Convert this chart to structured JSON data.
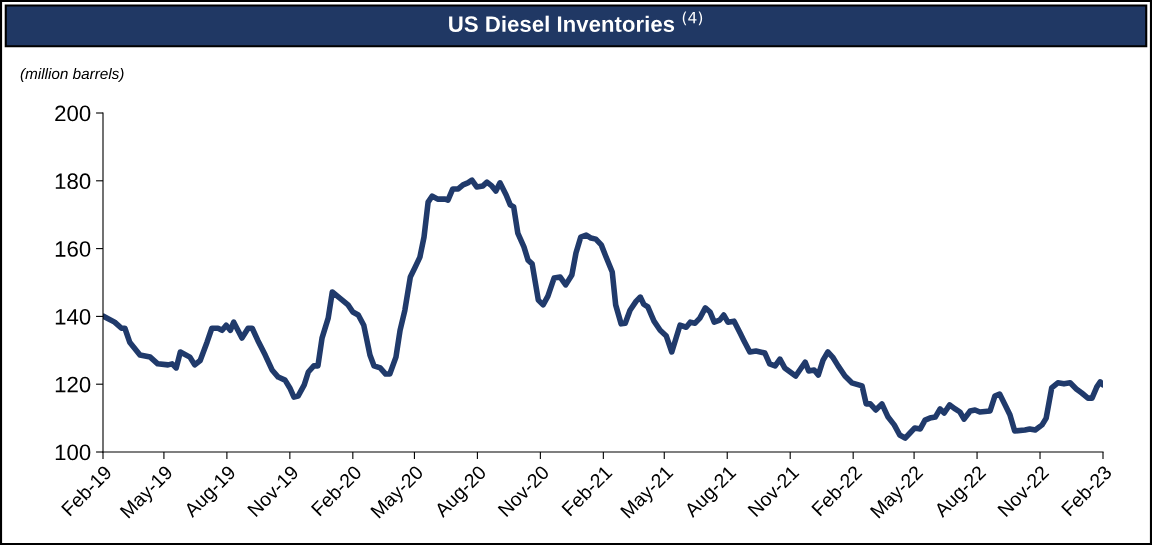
{
  "chart_data": {
    "type": "line",
    "title": "US Diesel Inventories $^{(4)}$",
    "ylabel": "(million barrels)",
    "x": [
      "2019-02-01",
      "2019-02-18",
      "2019-02-28",
      "2019-03-05",
      "2019-03-12",
      "2019-03-27",
      "2019-04-11",
      "2019-04-22",
      "2019-05-07",
      "2019-05-13",
      "2019-05-19",
      "2019-05-25",
      "2019-06-08",
      "2019-06-15",
      "2019-06-23",
      "2019-07-03",
      "2019-07-10",
      "2019-07-19",
      "2019-07-25",
      "2019-07-31",
      "2019-08-06",
      "2019-08-11",
      "2019-08-23",
      "2019-09-01",
      "2019-09-07",
      "2019-09-15",
      "2019-09-26",
      "2019-10-06",
      "2019-10-15",
      "2019-10-25",
      "2019-11-01",
      "2019-11-07",
      "2019-11-13",
      "2019-11-22",
      "2019-11-28",
      "2019-12-06",
      "2019-12-12",
      "2019-12-18",
      "2019-12-27",
      "2020-01-02",
      "2020-01-13",
      "2020-01-25",
      "2020-02-01",
      "2020-02-09",
      "2020-02-17",
      "2020-02-26",
      "2020-03-03",
      "2020-03-12",
      "2020-03-20",
      "2020-03-26",
      "2020-04-04",
      "2020-04-10",
      "2020-04-17",
      "2020-04-25",
      "2020-05-02",
      "2020-05-09",
      "2020-05-15",
      "2020-05-21",
      "2020-05-27",
      "2020-06-04",
      "2020-06-15",
      "2020-06-19",
      "2020-06-26",
      "2020-07-04",
      "2020-07-11",
      "2020-07-18",
      "2020-07-24",
      "2020-07-31",
      "2020-08-09",
      "2020-08-15",
      "2020-08-22",
      "2020-08-28",
      "2020-09-03",
      "2020-09-12",
      "2020-09-18",
      "2020-09-23",
      "2020-09-29",
      "2020-10-08",
      "2020-10-14",
      "2020-10-20",
      "2020-10-29",
      "2020-11-05",
      "2020-11-12",
      "2020-11-21",
      "2020-11-30",
      "2020-12-08",
      "2020-12-17",
      "2020-12-23",
      "2020-12-30",
      "2021-01-07",
      "2021-01-14",
      "2021-01-21",
      "2021-01-29",
      "2021-02-05",
      "2021-02-14",
      "2021-02-19",
      "2021-02-27",
      "2021-03-05",
      "2021-03-12",
      "2021-03-21",
      "2021-03-27",
      "2021-04-01",
      "2021-04-07",
      "2021-04-16",
      "2021-04-25",
      "2021-05-04",
      "2021-05-12",
      "2021-05-24",
      "2021-06-02",
      "2021-06-08",
      "2021-06-15",
      "2021-06-22",
      "2021-06-30",
      "2021-07-07",
      "2021-07-13",
      "2021-07-21",
      "2021-07-27",
      "2021-08-02",
      "2021-08-11",
      "2021-08-20",
      "2021-08-25",
      "2021-09-03",
      "2021-09-12",
      "2021-09-25",
      "2021-10-02",
      "2021-10-10",
      "2021-10-17",
      "2021-10-24",
      "2021-11-01",
      "2021-11-09",
      "2021-11-15",
      "2021-11-23",
      "2021-11-28",
      "2021-12-06",
      "2021-12-12",
      "2021-12-19",
      "2021-12-26",
      "2022-01-02",
      "2022-01-10",
      "2022-01-20",
      "2022-01-30",
      "2022-02-14",
      "2022-02-20",
      "2022-02-26",
      "2022-03-06",
      "2022-03-15",
      "2022-03-24",
      "2022-04-02",
      "2022-04-10",
      "2022-04-18",
      "2022-04-25",
      "2022-05-02",
      "2022-05-10",
      "2022-05-17",
      "2022-05-24",
      "2022-06-01",
      "2022-06-08",
      "2022-06-14",
      "2022-06-22",
      "2022-06-30",
      "2022-07-07",
      "2022-07-13",
      "2022-07-22",
      "2022-07-29",
      "2022-08-05",
      "2022-08-20",
      "2022-08-27",
      "2022-09-03",
      "2022-09-11",
      "2022-09-18",
      "2022-09-25",
      "2022-10-10",
      "2022-10-17",
      "2022-10-25",
      "2022-11-04",
      "2022-11-10",
      "2022-11-18",
      "2022-11-27",
      "2022-12-06",
      "2022-12-15",
      "2022-12-24",
      "2023-01-01",
      "2023-01-10",
      "2023-01-16",
      "2023-01-23",
      "2023-01-28",
      "2023-02-01"
    ],
    "series": [
      {
        "color": "#203a6b",
        "values": [
          140.1,
          138.3,
          136.5,
          136.5,
          132.4,
          128.6,
          128,
          126,
          125.7,
          126,
          124.8,
          129.5,
          128,
          125.7,
          127,
          132.4,
          136.5,
          136.5,
          135.9,
          137.4,
          135.9,
          138.3,
          133.6,
          136.5,
          136.5,
          133,
          128.6,
          124.2,
          122.1,
          121.2,
          118.9,
          116.2,
          116.5,
          119.8,
          123.6,
          125.4,
          125.4,
          133.6,
          139.5,
          147.2,
          145.4,
          143.4,
          141.3,
          140.4,
          137.4,
          128.6,
          125.4,
          124.8,
          123,
          123,
          128,
          135.9,
          141.8,
          151.6,
          154.5,
          157.5,
          163.4,
          173.7,
          175.5,
          174.6,
          174.6,
          174.3,
          177.6,
          177.6,
          178.8,
          179.4,
          180.2,
          178.2,
          178.5,
          179.6,
          178.5,
          177,
          179.4,
          175.8,
          172.9,
          172.3,
          164.6,
          160.5,
          156.6,
          155.5,
          144.8,
          143.4,
          146,
          151.3,
          151.6,
          149.3,
          152.2,
          158.7,
          163.4,
          164,
          163.1,
          162.8,
          161.1,
          157.5,
          153.1,
          143.4,
          137.8,
          138,
          141.8,
          144.5,
          145.7,
          143.6,
          142.8,
          138.6,
          135.9,
          134.2,
          129.5,
          137.4,
          136.8,
          138.3,
          138,
          139.5,
          142.5,
          141.3,
          138.3,
          138.9,
          140.4,
          138.3,
          138.6,
          135,
          133,
          129.5,
          129.8,
          129.2,
          126,
          125.4,
          127.4,
          124.8,
          123.6,
          122.4,
          124.2,
          126.5,
          123.9,
          124.2,
          122.7,
          127.1,
          129.5,
          128,
          125.4,
          122.4,
          120.4,
          119.5,
          114.2,
          114.2,
          112.4,
          114.2,
          110.3,
          108,
          105,
          104.1,
          105.6,
          107.1,
          106.8,
          109.4,
          110,
          110.3,
          112.7,
          111.5,
          113.9,
          112.7,
          111.8,
          109.7,
          112.1,
          112.4,
          111.8,
          112.1,
          116.5,
          117.1,
          113.9,
          111,
          106.2,
          106.5,
          106.8,
          106.5,
          108,
          110,
          118.9,
          120.4,
          120.1,
          120.4,
          118.6,
          117.4,
          115.9,
          115.9,
          119.2,
          120.7,
          119.8
        ]
      }
    ],
    "xlim": [
      "2019-02-01",
      "2023-02-01"
    ],
    "xticks": [
      {
        "value": "2019-02-01",
        "label": "Feb-19"
      },
      {
        "value": "2019-05-01",
        "label": "May-19"
      },
      {
        "value": "2019-08-01",
        "label": "Aug-19"
      },
      {
        "value": "2019-11-01",
        "label": "Nov-19"
      },
      {
        "value": "2020-02-01",
        "label": "Feb-20"
      },
      {
        "value": "2020-05-01",
        "label": "May-20"
      },
      {
        "value": "2020-08-01",
        "label": "Aug-20"
      },
      {
        "value": "2020-11-01",
        "label": "Nov-20"
      },
      {
        "value": "2021-02-01",
        "label": "Feb-21"
      },
      {
        "value": "2021-05-01",
        "label": "May-21"
      },
      {
        "value": "2021-08-01",
        "label": "Aug-21"
      },
      {
        "value": "2021-11-01",
        "label": "Nov-21"
      },
      {
        "value": "2022-02-01",
        "label": "Feb-22"
      },
      {
        "value": "2022-05-01",
        "label": "May-22"
      },
      {
        "value": "2022-08-01",
        "label": "Aug-22"
      },
      {
        "value": "2022-11-01",
        "label": "Nov-22"
      },
      {
        "value": "2023-02-01",
        "label": "Feb-23"
      }
    ],
    "ylim": [
      100,
      200
    ],
    "yticks": [
      100,
      120,
      140,
      160,
      180,
      200
    ],
    "grid": false,
    "marker": "none",
    "line_style": "solid"
  }
}
